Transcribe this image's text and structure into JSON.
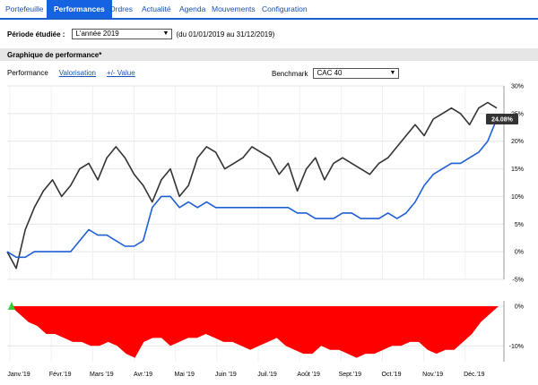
{
  "tabs": [
    {
      "label": "Portefeuille",
      "active": false
    },
    {
      "label": "Performances",
      "active": true
    },
    {
      "label": "Ordres",
      "active": false
    },
    {
      "label": "Actualité",
      "active": false
    },
    {
      "label": "Agenda",
      "active": false
    },
    {
      "label": "Mouvements",
      "active": false
    },
    {
      "label": "Configuration",
      "active": false
    }
  ],
  "period": {
    "label": "Période étudiée :",
    "selected": "L'année 2019",
    "range": "(du 01/01/2019 au 31/12/2019)"
  },
  "section_title": "Graphique de performance*",
  "view_links": {
    "performance": "Performance",
    "valorisation": "Valorisation",
    "plus_minus": "+/- Value"
  },
  "benchmark": {
    "label": "Benchmark",
    "selected": "CAC 40"
  },
  "colors": {
    "portfolio_line": "#333333",
    "benchmark_line": "#1f5fd6",
    "drawdown_fill": "#ff0000",
    "marker": "#33cc33",
    "tab_active": "#1563e0"
  },
  "chart_data": [
    {
      "type": "line",
      "y_tick_labels": [
        "30%",
        "25%",
        "20%",
        "15%",
        "10%",
        "5%",
        "0%",
        "-5%"
      ],
      "ylim": [
        -5,
        30
      ],
      "grid": true,
      "current_value_label": "24.08%",
      "x_tick_labels": [
        "Janv.'19",
        "Févr.'19",
        "Mars '19",
        "Avr.'19",
        "Mai '19",
        "Juin '19",
        "Juil.'19",
        "Août '19",
        "Sept.'19",
        "Oct.'19",
        "Nov.'19",
        "Déc.'19"
      ],
      "series": [
        {
          "values": [
            0,
            -3,
            4,
            8,
            11,
            13,
            10,
            12,
            15,
            16,
            13,
            17,
            19,
            17,
            14,
            12,
            9,
            13,
            15,
            10,
            12,
            17,
            19,
            18,
            15,
            16,
            17,
            19,
            18,
            17,
            14,
            16,
            11,
            15,
            17,
            13,
            16,
            17,
            16,
            15,
            14,
            16,
            17,
            19,
            21,
            23,
            21,
            24,
            25,
            26,
            25,
            23,
            26,
            27,
            26
          ]
        },
        {
          "values": [
            0,
            -1,
            -1,
            0,
            0,
            0,
            0,
            0,
            2,
            4,
            3,
            3,
            2,
            1,
            1,
            2,
            8,
            10,
            10,
            8,
            9,
            8,
            9,
            8,
            8,
            8,
            8,
            8,
            8,
            8,
            8,
            8,
            7,
            7,
            6,
            6,
            6,
            7,
            7,
            6,
            6,
            6,
            7,
            6,
            7,
            9,
            12,
            14,
            15,
            16,
            16,
            17,
            18,
            20,
            24
          ]
        }
      ]
    },
    {
      "type": "area",
      "y_tick_labels": [
        "0%",
        "-10%"
      ],
      "ylim": [
        -14,
        0
      ],
      "values": [
        0,
        -2,
        -4,
        -5,
        -7,
        -7,
        -8,
        -9,
        -9,
        -10,
        -10,
        -9,
        -10,
        -12,
        -13,
        -9,
        -8,
        -8,
        -10,
        -9,
        -8,
        -8,
        -7,
        -8,
        -9,
        -9,
        -10,
        -11,
        -10,
        -9,
        -8,
        -10,
        -11,
        -12,
        -12,
        -10,
        -11,
        -11,
        -12,
        -13,
        -12,
        -12,
        -11,
        -10,
        -10,
        -9,
        -9,
        -11,
        -12,
        -11,
        -11,
        -9,
        -7,
        -4,
        -2,
        0
      ]
    }
  ]
}
